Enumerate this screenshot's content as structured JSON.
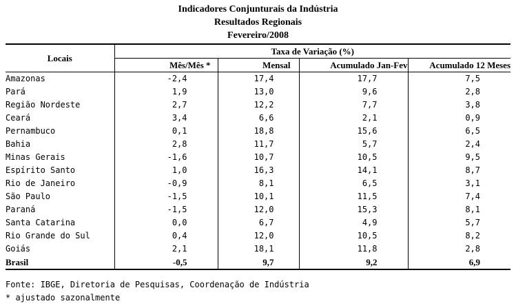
{
  "title": {
    "line1": "Indicadores Conjunturais da Indústria",
    "line2": "Resultados Regionais",
    "line3": "Fevereiro/2008"
  },
  "header": {
    "locais": "Locais",
    "group": "Taxa de Variação (%)",
    "mes_mes": "Mês/Mês *",
    "mensal": "Mensal",
    "acumulado_jan_fev": "Acumulado Jan-Fev",
    "acumulado_12": "Acumulado 12 Meses"
  },
  "rows": [
    {
      "local": "Amazonas",
      "mes_mes": "-2,4",
      "mensal": "17,4",
      "acum_jf": "17,7",
      "acum_12": "7,5"
    },
    {
      "local": "Pará",
      "mes_mes": "1,9",
      "mensal": "13,0",
      "acum_jf": "9,6",
      "acum_12": "2,8"
    },
    {
      "local": "Região Nordeste",
      "mes_mes": "2,7",
      "mensal": "12,2",
      "acum_jf": "7,7",
      "acum_12": "3,8"
    },
    {
      "local": "Ceará",
      "mes_mes": "3,4",
      "mensal": "6,6",
      "acum_jf": "2,1",
      "acum_12": "0,9"
    },
    {
      "local": "Pernambuco",
      "mes_mes": "0,1",
      "mensal": "18,8",
      "acum_jf": "15,6",
      "acum_12": "6,5"
    },
    {
      "local": "Bahia",
      "mes_mes": "2,8",
      "mensal": "11,7",
      "acum_jf": "5,7",
      "acum_12": "2,4"
    },
    {
      "local": "Minas Gerais",
      "mes_mes": "-1,6",
      "mensal": "10,7",
      "acum_jf": "10,5",
      "acum_12": "9,5"
    },
    {
      "local": "Espírito Santo",
      "mes_mes": "1,0",
      "mensal": "16,3",
      "acum_jf": "14,1",
      "acum_12": "8,7"
    },
    {
      "local": "Rio de Janeiro",
      "mes_mes": "-0,9",
      "mensal": "8,1",
      "acum_jf": "6,5",
      "acum_12": "3,1"
    },
    {
      "local": "São Paulo",
      "mes_mes": "-1,5",
      "mensal": "10,1",
      "acum_jf": "11,5",
      "acum_12": "7,4"
    },
    {
      "local": "Paraná",
      "mes_mes": "-1,5",
      "mensal": "12,0",
      "acum_jf": "15,3",
      "acum_12": "8,1"
    },
    {
      "local": "Santa Catarina",
      "mes_mes": "0,0",
      "mensal": "6,7",
      "acum_jf": "4,9",
      "acum_12": "5,7"
    },
    {
      "local": "Rio Grande do Sul",
      "mes_mes": "0,4",
      "mensal": "12,0",
      "acum_jf": "10,5",
      "acum_12": "8,2"
    },
    {
      "local": "Goiás",
      "mes_mes": "2,1",
      "mensal": "18,1",
      "acum_jf": "11,8",
      "acum_12": "2,8"
    }
  ],
  "total": {
    "local": "Brasil",
    "mes_mes": "-0,5",
    "mensal": "9,7",
    "acum_jf": "9,2",
    "acum_12": "6,9"
  },
  "notes": {
    "source": "Fonte: IBGE, Diretoria de Pesquisas, Coordenação de Indústria",
    "footnote": "* ajustado sazonalmente"
  }
}
